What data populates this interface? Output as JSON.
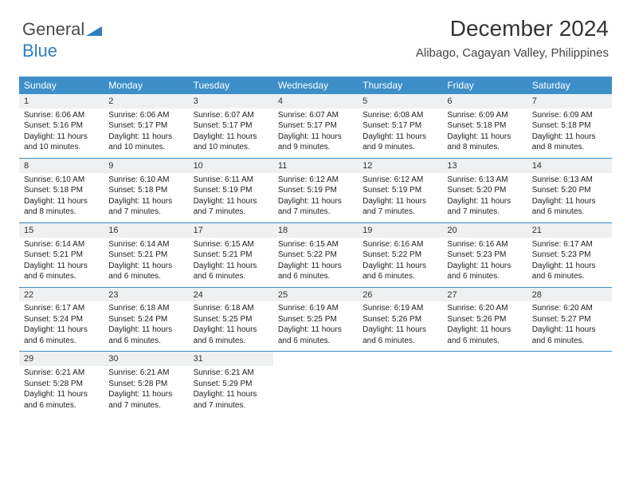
{
  "brand": {
    "name_part1": "General",
    "name_part2": "Blue",
    "colors": {
      "text": "#4a4a4a",
      "accent": "#2f7fbf",
      "header_bg": "#3c8fc9"
    }
  },
  "header": {
    "title": "December 2024",
    "location": "Alibago, Cagayan Valley, Philippines"
  },
  "calendar": {
    "weekdays": [
      "Sunday",
      "Monday",
      "Tuesday",
      "Wednesday",
      "Thursday",
      "Friday",
      "Saturday"
    ],
    "weeks": [
      [
        {
          "num": "1",
          "sunrise": "Sunrise: 6:06 AM",
          "sunset": "Sunset: 5:16 PM",
          "daylight": "Daylight: 11 hours and 10 minutes."
        },
        {
          "num": "2",
          "sunrise": "Sunrise: 6:06 AM",
          "sunset": "Sunset: 5:17 PM",
          "daylight": "Daylight: 11 hours and 10 minutes."
        },
        {
          "num": "3",
          "sunrise": "Sunrise: 6:07 AM",
          "sunset": "Sunset: 5:17 PM",
          "daylight": "Daylight: 11 hours and 10 minutes."
        },
        {
          "num": "4",
          "sunrise": "Sunrise: 6:07 AM",
          "sunset": "Sunset: 5:17 PM",
          "daylight": "Daylight: 11 hours and 9 minutes."
        },
        {
          "num": "5",
          "sunrise": "Sunrise: 6:08 AM",
          "sunset": "Sunset: 5:17 PM",
          "daylight": "Daylight: 11 hours and 9 minutes."
        },
        {
          "num": "6",
          "sunrise": "Sunrise: 6:09 AM",
          "sunset": "Sunset: 5:18 PM",
          "daylight": "Daylight: 11 hours and 8 minutes."
        },
        {
          "num": "7",
          "sunrise": "Sunrise: 6:09 AM",
          "sunset": "Sunset: 5:18 PM",
          "daylight": "Daylight: 11 hours and 8 minutes."
        }
      ],
      [
        {
          "num": "8",
          "sunrise": "Sunrise: 6:10 AM",
          "sunset": "Sunset: 5:18 PM",
          "daylight": "Daylight: 11 hours and 8 minutes."
        },
        {
          "num": "9",
          "sunrise": "Sunrise: 6:10 AM",
          "sunset": "Sunset: 5:18 PM",
          "daylight": "Daylight: 11 hours and 7 minutes."
        },
        {
          "num": "10",
          "sunrise": "Sunrise: 6:11 AM",
          "sunset": "Sunset: 5:19 PM",
          "daylight": "Daylight: 11 hours and 7 minutes."
        },
        {
          "num": "11",
          "sunrise": "Sunrise: 6:12 AM",
          "sunset": "Sunset: 5:19 PM",
          "daylight": "Daylight: 11 hours and 7 minutes."
        },
        {
          "num": "12",
          "sunrise": "Sunrise: 6:12 AM",
          "sunset": "Sunset: 5:19 PM",
          "daylight": "Daylight: 11 hours and 7 minutes."
        },
        {
          "num": "13",
          "sunrise": "Sunrise: 6:13 AM",
          "sunset": "Sunset: 5:20 PM",
          "daylight": "Daylight: 11 hours and 7 minutes."
        },
        {
          "num": "14",
          "sunrise": "Sunrise: 6:13 AM",
          "sunset": "Sunset: 5:20 PM",
          "daylight": "Daylight: 11 hours and 6 minutes."
        }
      ],
      [
        {
          "num": "15",
          "sunrise": "Sunrise: 6:14 AM",
          "sunset": "Sunset: 5:21 PM",
          "daylight": "Daylight: 11 hours and 6 minutes."
        },
        {
          "num": "16",
          "sunrise": "Sunrise: 6:14 AM",
          "sunset": "Sunset: 5:21 PM",
          "daylight": "Daylight: 11 hours and 6 minutes."
        },
        {
          "num": "17",
          "sunrise": "Sunrise: 6:15 AM",
          "sunset": "Sunset: 5:21 PM",
          "daylight": "Daylight: 11 hours and 6 minutes."
        },
        {
          "num": "18",
          "sunrise": "Sunrise: 6:15 AM",
          "sunset": "Sunset: 5:22 PM",
          "daylight": "Daylight: 11 hours and 6 minutes."
        },
        {
          "num": "19",
          "sunrise": "Sunrise: 6:16 AM",
          "sunset": "Sunset: 5:22 PM",
          "daylight": "Daylight: 11 hours and 6 minutes."
        },
        {
          "num": "20",
          "sunrise": "Sunrise: 6:16 AM",
          "sunset": "Sunset: 5:23 PM",
          "daylight": "Daylight: 11 hours and 6 minutes."
        },
        {
          "num": "21",
          "sunrise": "Sunrise: 6:17 AM",
          "sunset": "Sunset: 5:23 PM",
          "daylight": "Daylight: 11 hours and 6 minutes."
        }
      ],
      [
        {
          "num": "22",
          "sunrise": "Sunrise: 6:17 AM",
          "sunset": "Sunset: 5:24 PM",
          "daylight": "Daylight: 11 hours and 6 minutes."
        },
        {
          "num": "23",
          "sunrise": "Sunrise: 6:18 AM",
          "sunset": "Sunset: 5:24 PM",
          "daylight": "Daylight: 11 hours and 6 minutes."
        },
        {
          "num": "24",
          "sunrise": "Sunrise: 6:18 AM",
          "sunset": "Sunset: 5:25 PM",
          "daylight": "Daylight: 11 hours and 6 minutes."
        },
        {
          "num": "25",
          "sunrise": "Sunrise: 6:19 AM",
          "sunset": "Sunset: 5:25 PM",
          "daylight": "Daylight: 11 hours and 6 minutes."
        },
        {
          "num": "26",
          "sunrise": "Sunrise: 6:19 AM",
          "sunset": "Sunset: 5:26 PM",
          "daylight": "Daylight: 11 hours and 6 minutes."
        },
        {
          "num": "27",
          "sunrise": "Sunrise: 6:20 AM",
          "sunset": "Sunset: 5:26 PM",
          "daylight": "Daylight: 11 hours and 6 minutes."
        },
        {
          "num": "28",
          "sunrise": "Sunrise: 6:20 AM",
          "sunset": "Sunset: 5:27 PM",
          "daylight": "Daylight: 11 hours and 6 minutes."
        }
      ],
      [
        {
          "num": "29",
          "sunrise": "Sunrise: 6:21 AM",
          "sunset": "Sunset: 5:28 PM",
          "daylight": "Daylight: 11 hours and 6 minutes."
        },
        {
          "num": "30",
          "sunrise": "Sunrise: 6:21 AM",
          "sunset": "Sunset: 5:28 PM",
          "daylight": "Daylight: 11 hours and 7 minutes."
        },
        {
          "num": "31",
          "sunrise": "Sunrise: 6:21 AM",
          "sunset": "Sunset: 5:29 PM",
          "daylight": "Daylight: 11 hours and 7 minutes."
        },
        {
          "empty": true
        },
        {
          "empty": true
        },
        {
          "empty": true
        },
        {
          "empty": true
        }
      ]
    ]
  },
  "style": {
    "daynum_bg": "#eef0f1",
    "week_border": "#3c8fc9",
    "text_color": "#222"
  }
}
